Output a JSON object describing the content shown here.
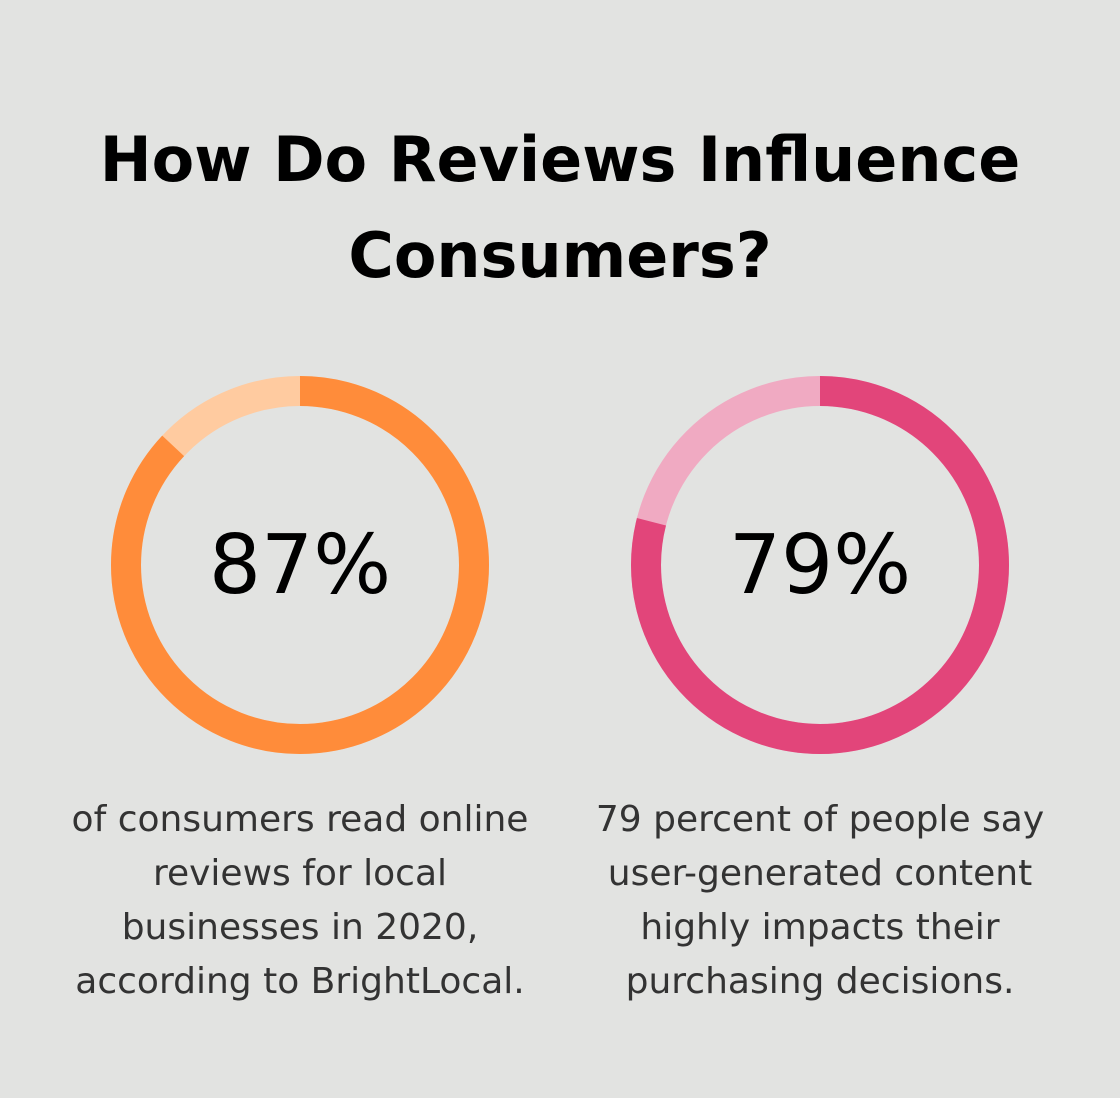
{
  "title": "How Do Reviews Influence Consumers?",
  "chart_data": [
    {
      "type": "donut",
      "values": [
        87
      ],
      "value_labels": [
        "87%"
      ],
      "color": "#FF8C3A",
      "track_color": "#FFCBA0",
      "caption": [
        "of consumers read online",
        "reviews for local",
        "businesses in 2020,",
        "according to BrightLocal."
      ]
    },
    {
      "type": "donut",
      "values": [
        79
      ],
      "value_labels": [
        "79%"
      ],
      "color": "#E2457A",
      "track_color": "#F0AAC2",
      "caption": [
        "79 percent of people say",
        "user-generated content",
        "highly impacts their",
        "purchasing decisions."
      ]
    }
  ]
}
